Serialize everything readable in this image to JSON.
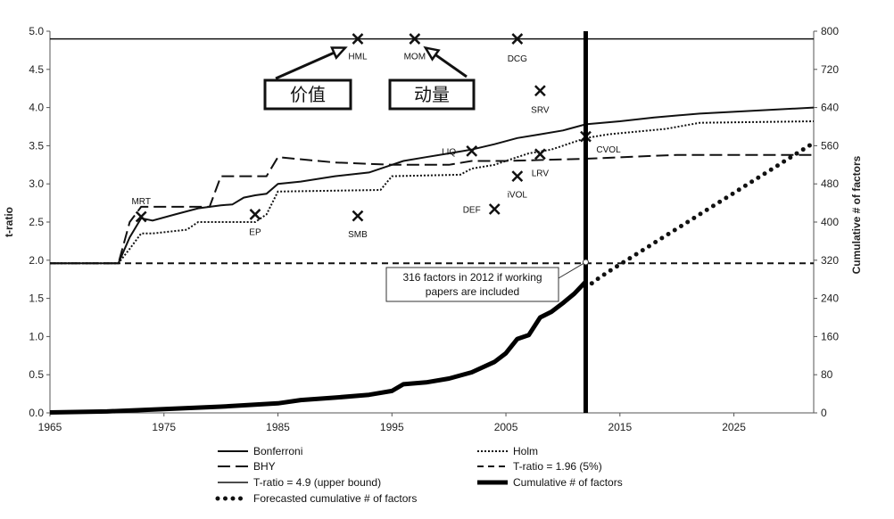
{
  "chart_data": {
    "type": "line",
    "title": "",
    "xlabel": "",
    "ylabel_left": "t-ratio",
    "ylabel_right": "Cumulative # of factors",
    "xlim": [
      1965,
      2032
    ],
    "ylim_left": [
      0,
      5.0
    ],
    "ylim_right": [
      0,
      800
    ],
    "x_ticks": [
      1965,
      1975,
      1985,
      1995,
      2005,
      2015,
      2025
    ],
    "y_left_ticks": [
      "0.0",
      "0.5",
      "1.0",
      "1.5",
      "2.0",
      "2.5",
      "3.0",
      "3.5",
      "4.0",
      "4.5",
      "5.0"
    ],
    "y_right_ticks": [
      "0",
      "80",
      "160",
      "240",
      "320",
      "400",
      "480",
      "560",
      "640",
      "720",
      "800"
    ],
    "grid": false,
    "legend_position": "bottom",
    "series": [
      {
        "name": "Bonferroni",
        "axis": "left",
        "style": "solid",
        "color": "#111111",
        "x": [
          1965,
          1971,
          1972,
          1973,
          1974,
          1976,
          1978,
          1980,
          1981,
          1982,
          1983,
          1984,
          1985,
          1987,
          1990,
          1993,
          1995,
          1996,
          1998,
          2000,
          2002,
          2004,
          2006,
          2008,
          2010,
          2012,
          2015,
          2018,
          2022,
          2032
        ],
        "y": [
          1.96,
          1.96,
          2.3,
          2.55,
          2.52,
          2.6,
          2.68,
          2.72,
          2.73,
          2.82,
          2.85,
          2.87,
          3.0,
          3.03,
          3.1,
          3.15,
          3.25,
          3.3,
          3.35,
          3.4,
          3.45,
          3.52,
          3.6,
          3.65,
          3.7,
          3.78,
          3.82,
          3.87,
          3.92,
          4.0
        ]
      },
      {
        "name": "Holm",
        "axis": "left",
        "style": "dotted",
        "color": "#111111",
        "x": [
          1965,
          1971,
          1972,
          1973,
          1974,
          1977,
          1978,
          1983,
          1984,
          1985,
          1994,
          1995,
          2001,
          2002,
          2004,
          2005,
          2007,
          2009,
          2011,
          2012,
          2014,
          2019,
          2022,
          2032
        ],
        "y": [
          1.96,
          1.96,
          2.15,
          2.35,
          2.35,
          2.4,
          2.5,
          2.5,
          2.6,
          2.9,
          2.92,
          3.1,
          3.12,
          3.2,
          3.25,
          3.3,
          3.4,
          3.45,
          3.55,
          3.6,
          3.65,
          3.72,
          3.8,
          3.82
        ]
      },
      {
        "name": "BHY",
        "axis": "left",
        "style": "dashed",
        "color": "#111111",
        "x": [
          1965,
          1971,
          1972,
          1973,
          1979,
          1980,
          1984,
          1985,
          1990,
          1995,
          2000,
          2002,
          2005,
          2012,
          2020,
          2032
        ],
        "y": [
          1.96,
          1.96,
          2.5,
          2.7,
          2.7,
          3.1,
          3.1,
          3.35,
          3.28,
          3.25,
          3.25,
          3.3,
          3.3,
          3.33,
          3.38,
          3.38
        ]
      },
      {
        "name": "T-ratio = 1.96 (5%)",
        "axis": "left",
        "style": "dash-dot",
        "color": "#111111",
        "x": [
          1965,
          2032
        ],
        "y": [
          1.96,
          1.96
        ]
      },
      {
        "name": "T-ratio = 4.9 (upper bound)",
        "axis": "left",
        "style": "thin-solid",
        "color": "#111111",
        "x": [
          1965,
          2032
        ],
        "y": [
          4.9,
          4.9
        ]
      },
      {
        "name": "Cumulative # of factors",
        "axis": "right",
        "style": "thick-solid",
        "color": "#000000",
        "x": [
          1965,
          1970,
          1975,
          1980,
          1985,
          1987,
          1990,
          1993,
          1995,
          1996,
          1998,
          2000,
          2002,
          2004,
          2005,
          2006,
          2007,
          2008,
          2009,
          2010,
          2011,
          2012
        ],
        "y": [
          1,
          3,
          8,
          13,
          20,
          27,
          32,
          38,
          46,
          60,
          64,
          72,
          85,
          107,
          125,
          155,
          163,
          200,
          212,
          230,
          250,
          275
        ]
      },
      {
        "name": "Forecasted cumulative # of factors",
        "axis": "right",
        "style": "big-dots",
        "color": "#111111",
        "x": [
          2012,
          2013,
          2014,
          2015,
          2016,
          2017,
          2018,
          2019,
          2020,
          2021,
          2022,
          2023,
          2024,
          2025,
          2026,
          2027,
          2028,
          2029,
          2030,
          2031,
          2032
        ],
        "y": [
          262,
          280,
          296,
          311,
          326,
          341,
          356,
          371,
          386,
          401,
          416,
          431,
          446,
          461,
          476,
          491,
          506,
          521,
          536,
          551,
          566
        ]
      }
    ],
    "factors": [
      {
        "label": "MRT",
        "x": 1973,
        "y": 2.57,
        "lx": 1973,
        "ly": 2.78
      },
      {
        "label": "EP",
        "x": 1983,
        "y": 2.6,
        "lx": 1983,
        "ly": 2.38
      },
      {
        "label": "SMB",
        "x": 1992,
        "y": 2.58,
        "lx": 1992,
        "ly": 2.35
      },
      {
        "label": "HML",
        "x": 1992,
        "y": 4.9,
        "lx": 1992,
        "ly": 4.68
      },
      {
        "label": "MOM",
        "x": 1997,
        "y": 4.9,
        "lx": 1997,
        "ly": 4.68
      },
      {
        "label": "DCG",
        "x": 2006,
        "y": 4.9,
        "lx": 2006,
        "ly": 4.65
      },
      {
        "label": "SRV",
        "x": 2008,
        "y": 4.22,
        "lx": 2008,
        "ly": 3.98
      },
      {
        "label": "LIQ",
        "x": 2002,
        "y": 3.43,
        "lx": 2000,
        "ly": 3.43
      },
      {
        "label": "CVOL",
        "x": 2012,
        "y": 3.62,
        "lx": 2014,
        "ly": 3.46
      },
      {
        "label": "LRV",
        "x": 2008,
        "y": 3.39,
        "lx": 2008,
        "ly": 3.15
      },
      {
        "label": "iVOL",
        "x": 2006,
        "y": 3.1,
        "lx": 2006,
        "ly": 2.87
      },
      {
        "label": "DEF",
        "x": 2004,
        "y": 2.67,
        "lx": 2002,
        "ly": 2.67
      }
    ],
    "annotations": {
      "box_value": "价值",
      "box_momentum": "动量",
      "working_papers_line1": "316  factors in 2012 if  working",
      "working_papers_line2": "papers are included",
      "vertical_marker_x": 2012
    }
  }
}
